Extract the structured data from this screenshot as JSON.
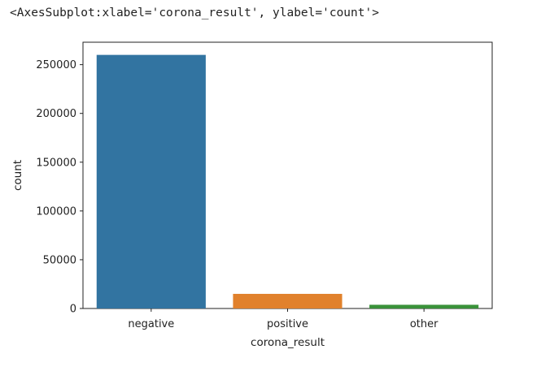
{
  "output_repr": "<AxesSubplot:xlabel='corona_result', ylabel='count'>",
  "chart_data": {
    "type": "bar",
    "categories": [
      "negative",
      "positive",
      "other"
    ],
    "values": [
      260000,
      15000,
      3800
    ],
    "colors": [
      "#3274a1",
      "#e1812c",
      "#3a923a"
    ],
    "xlabel": "corona_result",
    "ylabel": "count",
    "ylim": [
      0,
      273000
    ],
    "yticks": [
      0,
      50000,
      100000,
      150000,
      200000,
      250000
    ],
    "ytick_labels": [
      "0",
      "50000",
      "100000",
      "150000",
      "200000",
      "250000"
    ],
    "grid": false
  }
}
